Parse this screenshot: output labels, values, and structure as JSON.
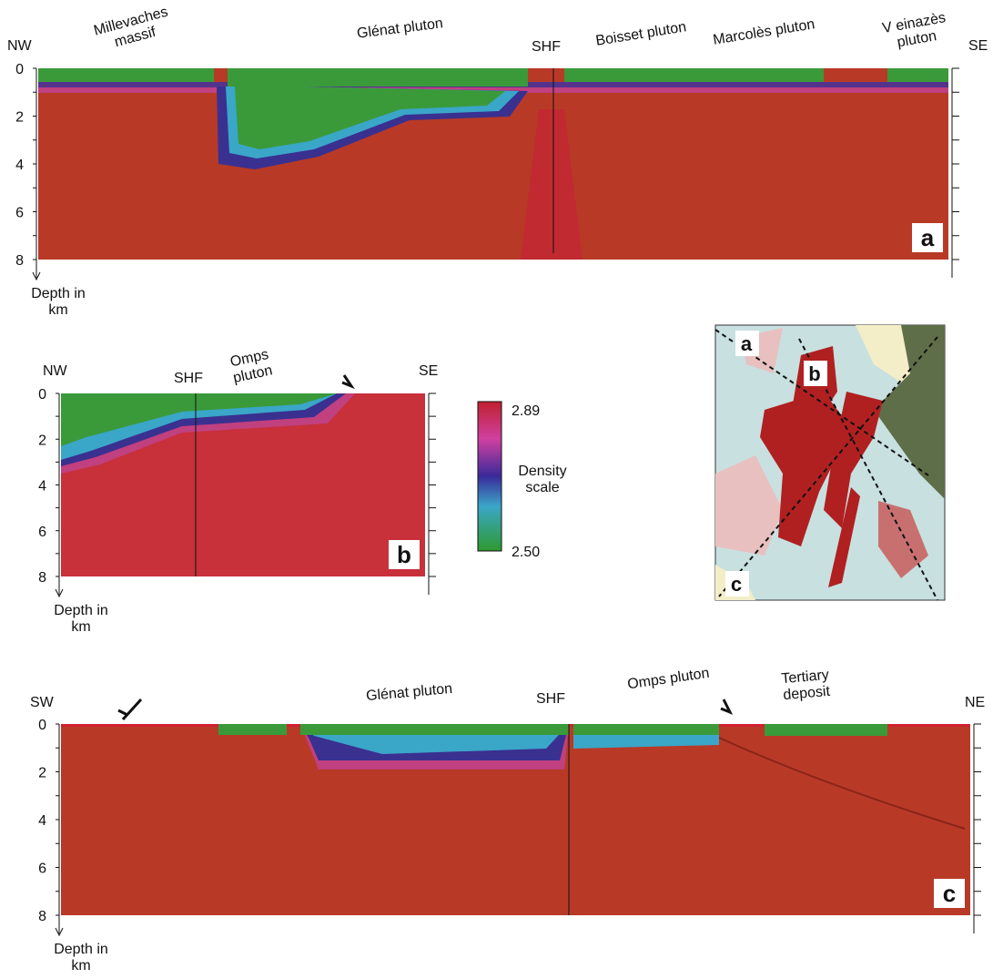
{
  "panels": [
    {
      "letter": "a",
      "left": "NW",
      "right": "SE",
      "depth_ticks": [
        0,
        2,
        4,
        6,
        8
      ],
      "depth_label": [
        "Depth in",
        "km"
      ],
      "labels": [
        [
          "Millevaches",
          "massif"
        ],
        [
          "Glénat pluton"
        ],
        [
          "SHF"
        ],
        [
          "Boisset pluton"
        ],
        [
          "Marcolès pluton"
        ],
        [
          "V einazès",
          "pluton"
        ]
      ]
    },
    {
      "letter": "b",
      "left": "NW",
      "right": "SE",
      "depth_ticks": [
        0,
        2,
        4,
        6,
        8
      ],
      "depth_label": [
        "Depth in",
        "km"
      ],
      "labels": [
        [
          "SHF"
        ],
        [
          "Omps",
          "pluton"
        ]
      ]
    },
    {
      "letter": "c",
      "left": "SW",
      "right": "NE",
      "depth_ticks": [
        0,
        2,
        4,
        6,
        8
      ],
      "depth_label": [
        "Depth in",
        "km"
      ],
      "labels": [
        [
          "Glénat pluton"
        ],
        [
          "SHF"
        ],
        [
          "Omps pluton"
        ],
        [
          "Tertiary",
          "deposit"
        ]
      ]
    }
  ],
  "density_scale": {
    "max": "2.89",
    "title": [
      "Density",
      "scale"
    ],
    "min": "2.50"
  },
  "map": {
    "labels": [
      "a",
      "b",
      "c"
    ]
  }
}
